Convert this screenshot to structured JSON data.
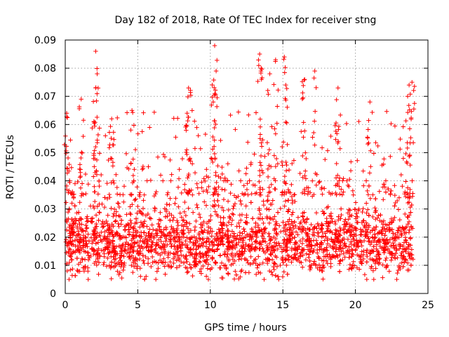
{
  "chart_data": {
    "type": "scatter",
    "title": "Day 182 of 2018, Rate Of TEC Index for receiver stng",
    "xlabel": "GPS time / hours",
    "ylabel": "ROTI / TECUs",
    "xlim": [
      0,
      25
    ],
    "ylim": [
      0,
      0.09
    ],
    "xticks": [
      0,
      5,
      10,
      15,
      20,
      25
    ],
    "yticks": [
      0,
      0.01,
      0.02,
      0.03,
      0.04,
      0.05,
      0.06,
      0.07,
      0.08,
      0.09
    ],
    "grid": true,
    "marker": "+",
    "color": "#ff0000",
    "series": [
      {
        "name": "ROTI",
        "x_range": [
          0,
          24
        ],
        "bulk_min": 0.005,
        "bulk_max": 0.04,
        "bulk_center": 0.018,
        "peaks": [
          {
            "x": 0.1,
            "y": 0.064
          },
          {
            "x": 1.1,
            "y": 0.069
          },
          {
            "x": 2.1,
            "y": 0.086
          },
          {
            "x": 2.2,
            "y": 0.078
          },
          {
            "x": 2.1,
            "y": 0.073
          },
          {
            "x": 3.2,
            "y": 0.062
          },
          {
            "x": 4.6,
            "y": 0.065
          },
          {
            "x": 8.5,
            "y": 0.073
          },
          {
            "x": 8.4,
            "y": 0.064
          },
          {
            "x": 10.3,
            "y": 0.088
          },
          {
            "x": 10.4,
            "y": 0.079
          },
          {
            "x": 10.2,
            "y": 0.068
          },
          {
            "x": 13.4,
            "y": 0.085
          },
          {
            "x": 13.5,
            "y": 0.08
          },
          {
            "x": 14.1,
            "y": 0.078
          },
          {
            "x": 14.5,
            "y": 0.083
          },
          {
            "x": 15.1,
            "y": 0.084
          },
          {
            "x": 15.2,
            "y": 0.074
          },
          {
            "x": 16.5,
            "y": 0.076
          },
          {
            "x": 17.2,
            "y": 0.079
          },
          {
            "x": 18.8,
            "y": 0.073
          },
          {
            "x": 21.0,
            "y": 0.068
          },
          {
            "x": 23.7,
            "y": 0.074
          },
          {
            "x": 23.9,
            "y": 0.075
          },
          {
            "x": 23.6,
            "y": 0.07
          }
        ]
      }
    ]
  }
}
